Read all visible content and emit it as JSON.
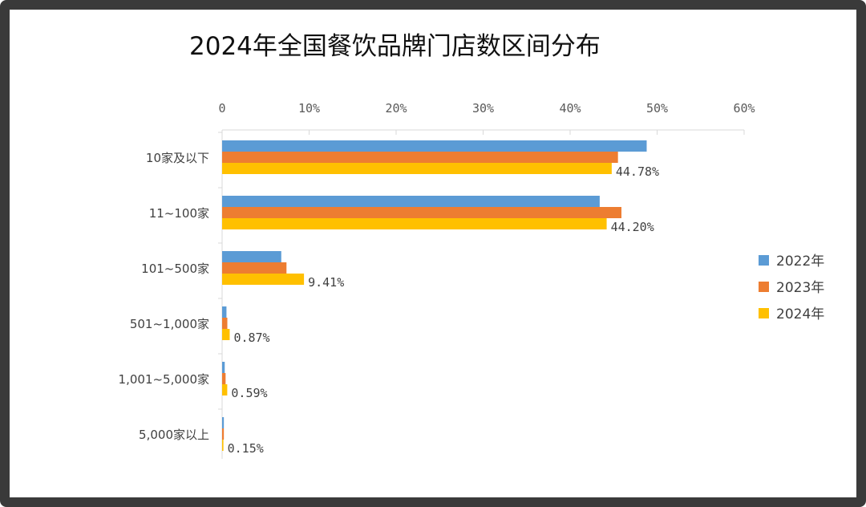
{
  "chart_data": {
    "type": "bar",
    "orientation": "horizontal",
    "title": "2024年全国餐饮品牌门店数区间分布",
    "categories": [
      "10家及以下",
      "11~100家",
      "101~500家",
      "501~1,000家",
      "1,001~5,000家",
      "5,000家以上"
    ],
    "series": [
      {
        "name": "2022年",
        "color": "#5B9BD5",
        "values": [
          48.8,
          43.4,
          6.8,
          0.5,
          0.3,
          0.2
        ]
      },
      {
        "name": "2023年",
        "color": "#ED7D31",
        "values": [
          45.5,
          45.9,
          7.4,
          0.6,
          0.4,
          0.2
        ]
      },
      {
        "name": "2024年",
        "color": "#FFC000",
        "values": [
          44.78,
          44.2,
          9.41,
          0.87,
          0.59,
          0.15
        ]
      }
    ],
    "data_labels": [
      "44.78%",
      "44.20%",
      "9.41%",
      "0.87%",
      "0.59%",
      "0.15%"
    ],
    "xlim": [
      0,
      60
    ],
    "x_ticks": [
      "0",
      "10%",
      "20%",
      "30%",
      "40%",
      "50%",
      "60%"
    ],
    "x_axis_position": "top",
    "grid": false,
    "legend_position": "right"
  }
}
